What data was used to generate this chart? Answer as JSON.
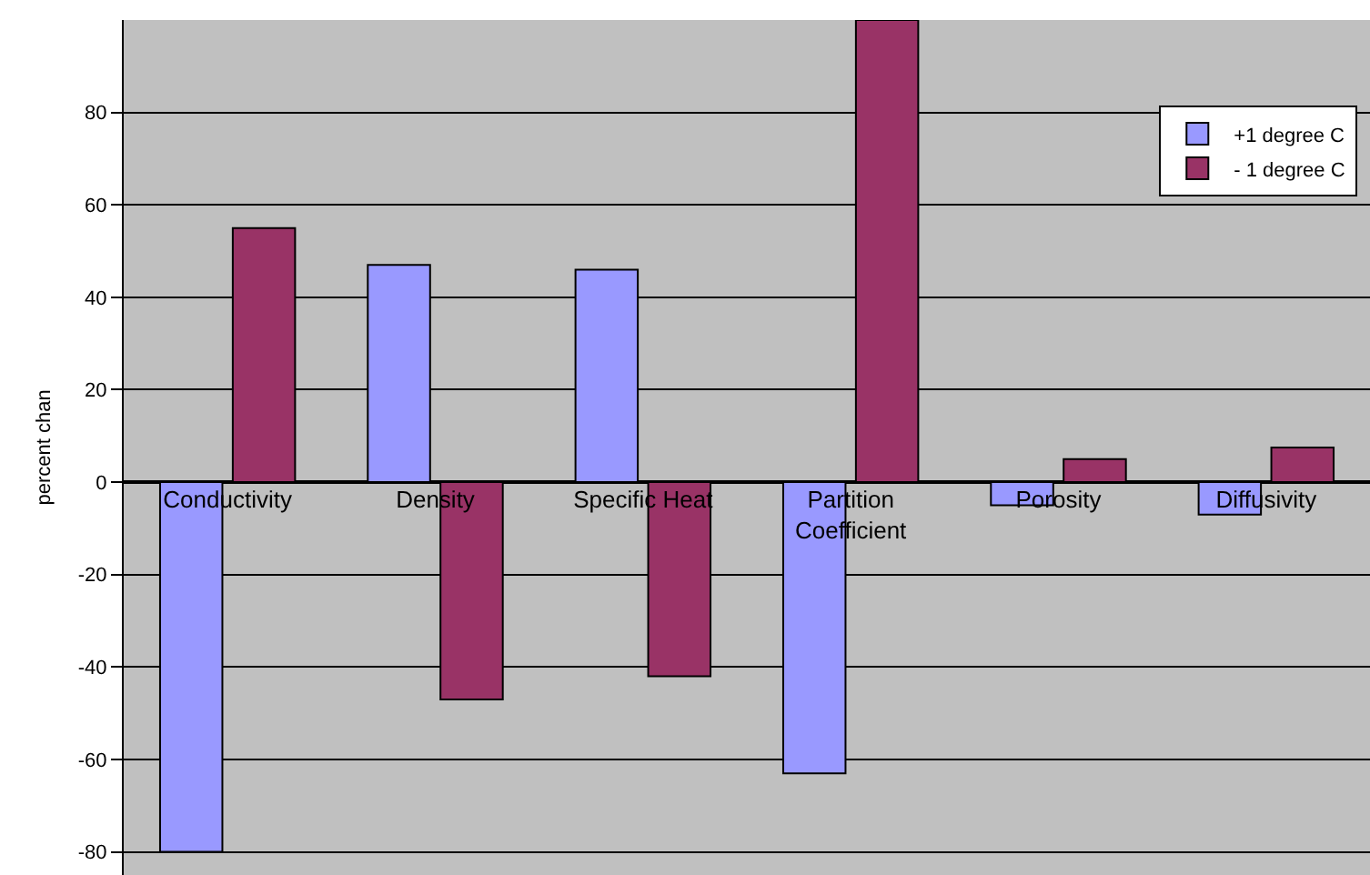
{
  "chart_data": {
    "type": "bar",
    "ylabel": "percent chan",
    "categories": [
      "Conductivity",
      "Density",
      "Specific Heat",
      "Partition Coefficient",
      "Porosity",
      "Diffusivity"
    ],
    "series": [
      {
        "name": "+1 degree C",
        "color": "#9999ff",
        "values": [
          -80,
          47,
          46,
          -63,
          -5,
          -7
        ]
      },
      {
        "name": "- 1 degree C",
        "color": "#993366",
        "values": [
          55,
          -47,
          -42,
          100,
          5,
          7.5
        ]
      }
    ],
    "ylim": [
      -85,
      100
    ],
    "yticks": [
      -80,
      -60,
      -40,
      -20,
      0,
      20,
      40,
      60,
      80
    ],
    "grid": "y",
    "legend": "top right"
  }
}
